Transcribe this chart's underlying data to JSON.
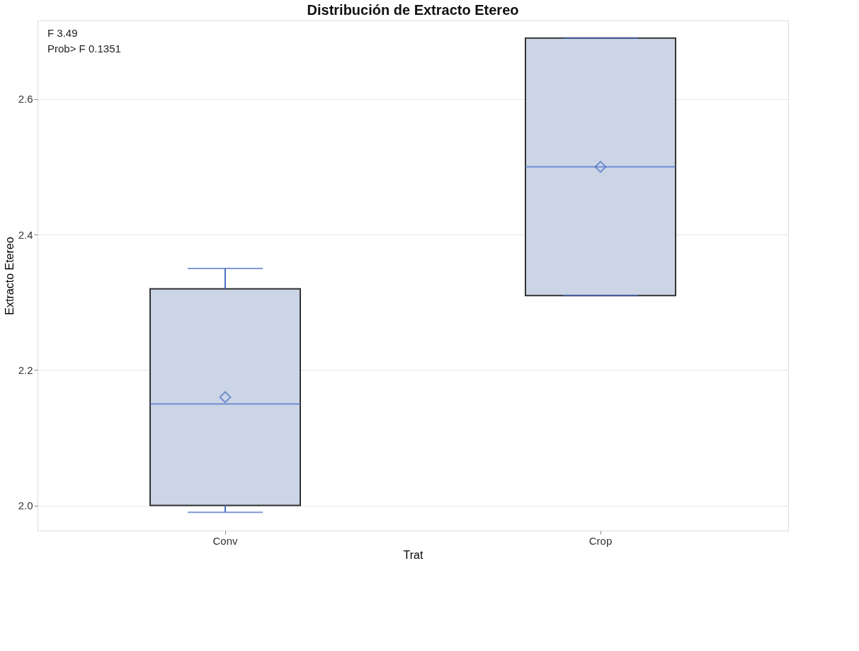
{
  "chart_data": {
    "type": "box",
    "title": "Distribución de Extracto Etereo",
    "xlabel": "Trat",
    "ylabel": "Extracto Etereo",
    "categories": [
      "Conv",
      "Crop"
    ],
    "boxes": [
      {
        "low": 1.99,
        "q1": 2.0,
        "median": 2.15,
        "q3": 2.32,
        "high": 2.35,
        "mean": 2.16
      },
      {
        "low": 2.31,
        "q1": 2.31,
        "median": 2.5,
        "q3": 2.69,
        "high": 2.69,
        "mean": 2.5
      }
    ],
    "colors": [
      "#cbd5e6",
      "#cbd5e6"
    ],
    "ylim": [
      1.963,
      2.716
    ],
    "yticks": [
      {
        "value": 2,
        "label": "2.0"
      },
      {
        "value": 2.2,
        "label": "2.2"
      },
      {
        "value": 2.4,
        "label": "2.4"
      },
      {
        "value": 2.6,
        "label": "2.6"
      }
    ],
    "grid": "y",
    "marker": "diamond",
    "annotations": [
      "F            3.49",
      "Prob> F  0.1351"
    ]
  }
}
